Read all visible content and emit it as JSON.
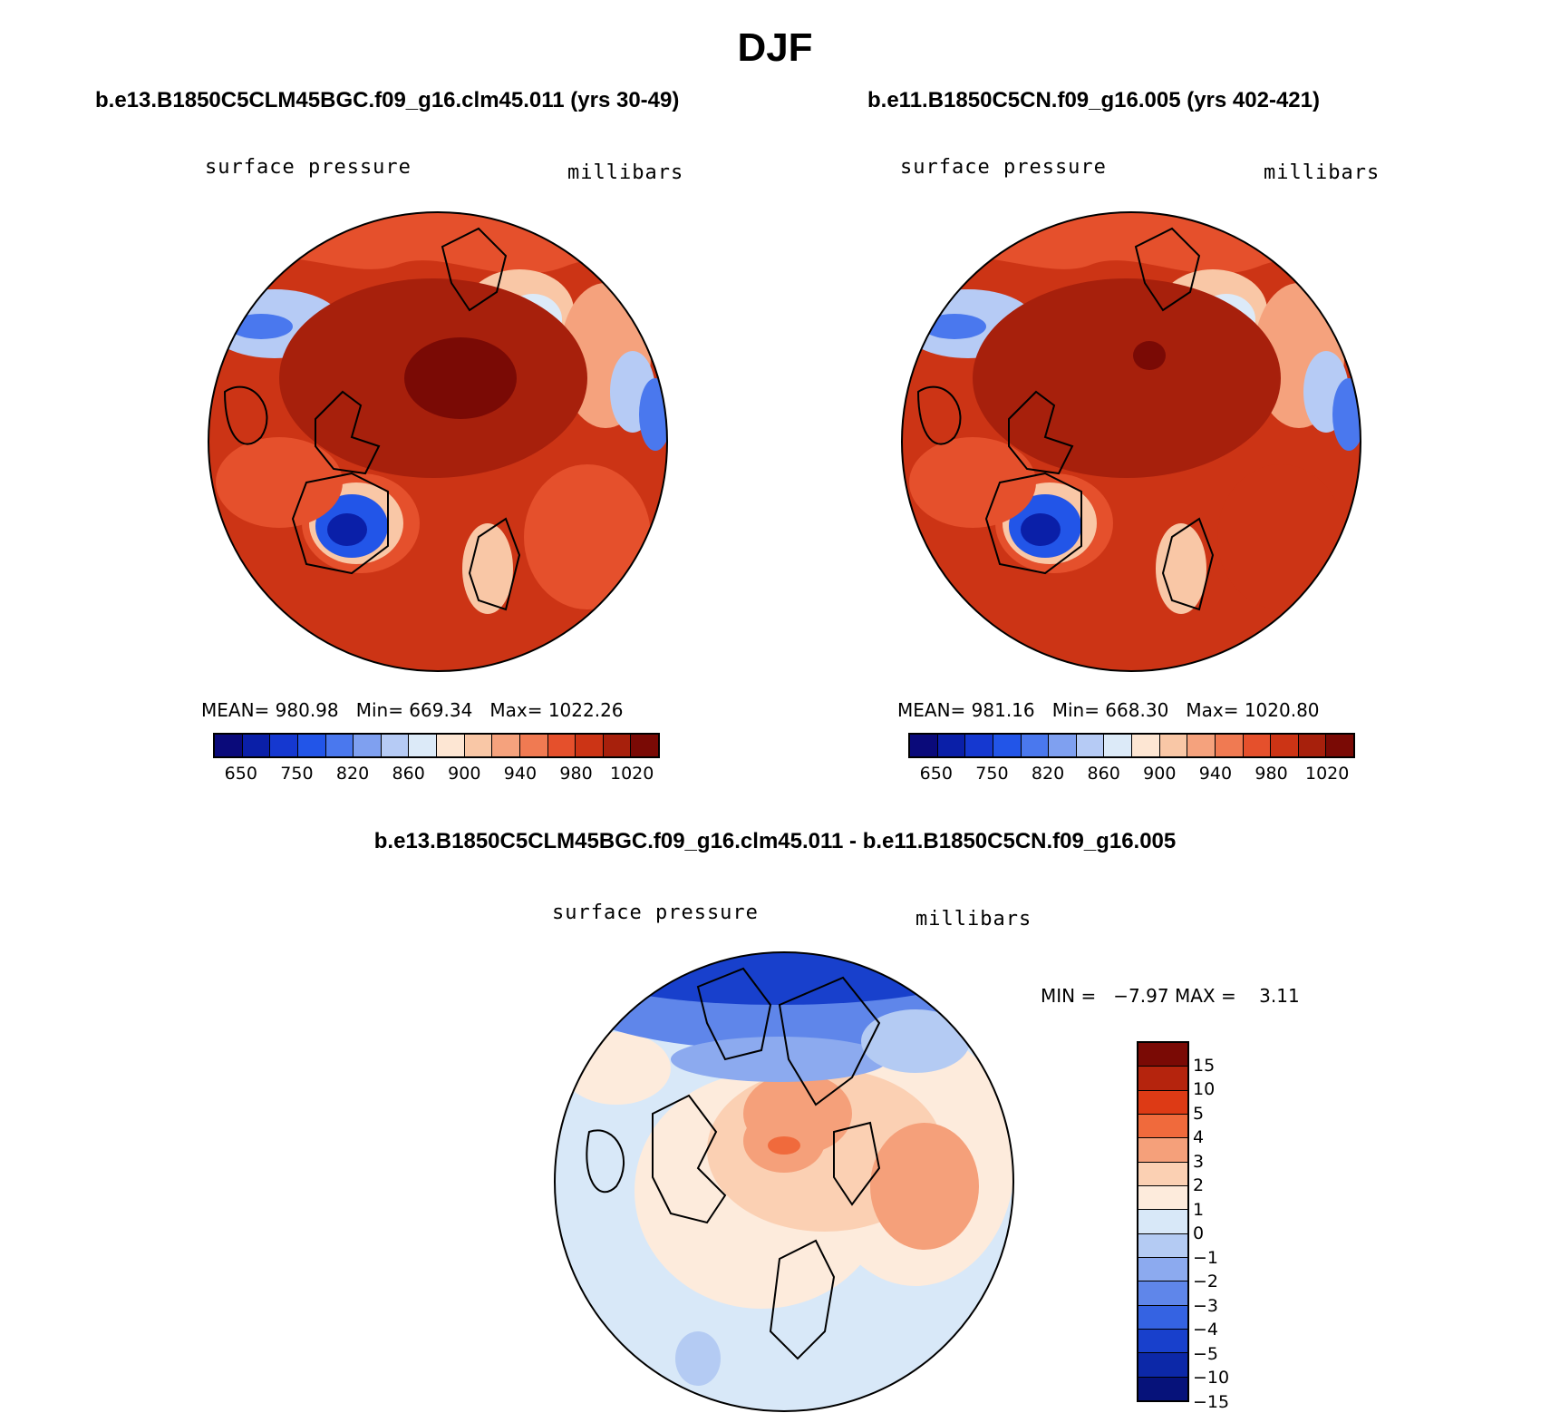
{
  "title": "DJF",
  "panels": [
    {
      "case": "b.e13.B1850C5CLM45BGC.f09_g16.clm45.011 (yrs 30-49)",
      "variable": "surface pressure",
      "units": "millibars",
      "stats": "MEAN= 980.98   Min= 669.34   Max= 1022.26"
    },
    {
      "case": "b.e11.B1850C5CN.f09_g16.005 (yrs 402-421)",
      "variable": "surface pressure",
      "units": "millibars",
      "stats": "MEAN= 981.16   Min= 668.30   Max= 1020.80"
    }
  ],
  "colorbar": {
    "colors": [
      "#0a0a7a",
      "#0a1fa8",
      "#1538d0",
      "#2255e8",
      "#4a78ee",
      "#7fa0f0",
      "#b6cbf5",
      "#dceaf8",
      "#fde6d3",
      "#f9c7a6",
      "#f5a27d",
      "#f07a52",
      "#e5502c",
      "#cc3415",
      "#a7200c",
      "#7a0a05"
    ],
    "ticks": [
      "650",
      "750",
      "820",
      "860",
      "900",
      "940",
      "980",
      "1020"
    ]
  },
  "diff": {
    "title": "b.e13.B1850C5CLM45BGC.f09_g16.clm45.011 - b.e11.B1850C5CN.f09_g16.005",
    "variable": "surface pressure",
    "units": "millibars",
    "stats": "MIN =   −7.97 MAX =    3.11",
    "colorbar": {
      "colors": [
        "#7a0a05",
        "#b5240d",
        "#dd3a15",
        "#f06a3c",
        "#f5a07a",
        "#fbd0b3",
        "#fdebdc",
        "#d8e8f8",
        "#b4cbf3",
        "#8caaef",
        "#5f86ea",
        "#3563e2",
        "#1840cc",
        "#0c28a8",
        "#06127a"
      ],
      "labels": [
        "15",
        "10",
        "5",
        "4",
        "3",
        "2",
        "1",
        "0",
        "−1",
        "−2",
        "−3",
        "−4",
        "−5",
        "−10",
        "−15"
      ]
    }
  }
}
